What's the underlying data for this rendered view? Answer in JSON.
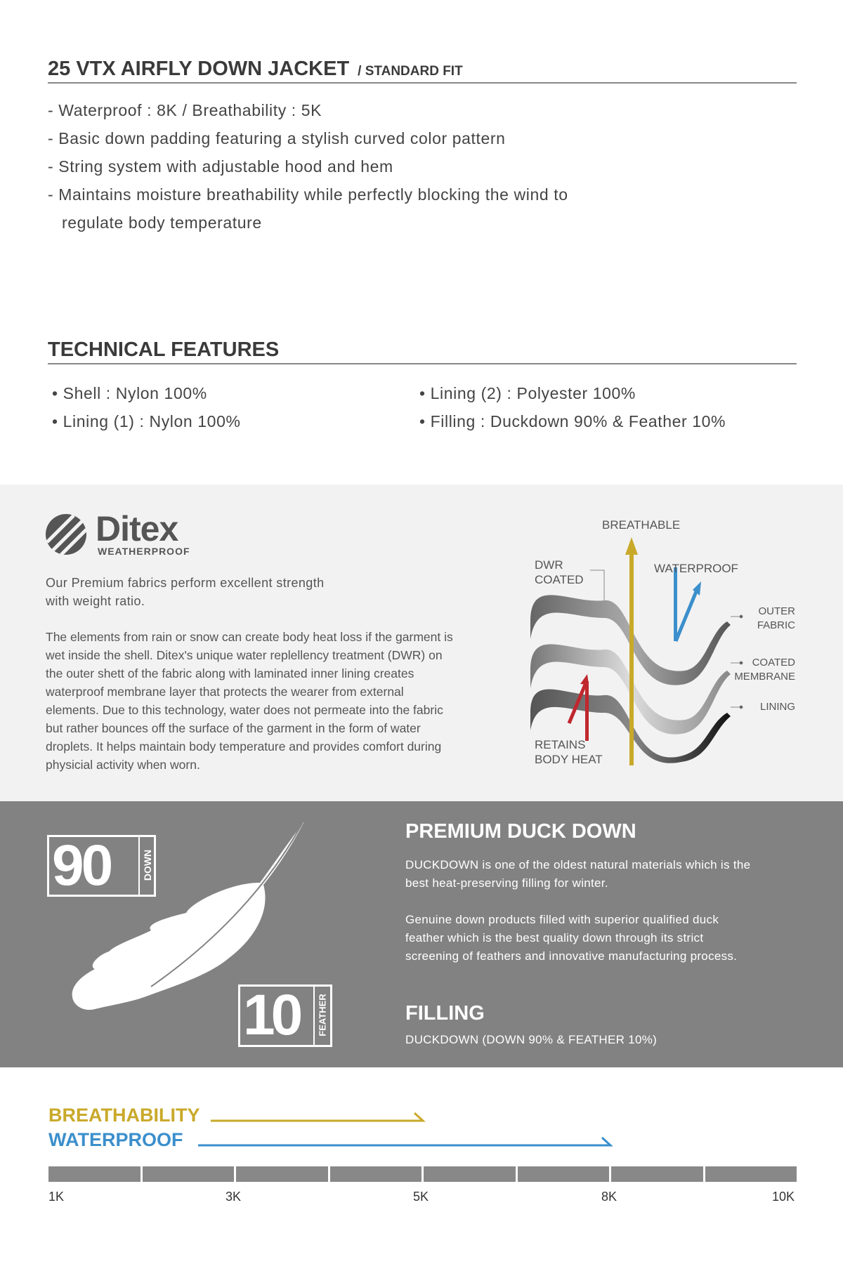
{
  "product": {
    "title": "25 VTX AIRFLY DOWN JACKET",
    "fit": "/ STANDARD FIT",
    "bullets": [
      "- Waterproof : 8K / Breathability : 5K",
      "- Basic down padding featuring a stylish curved color pattern",
      "- String system with adjustable hood and hem",
      "- Maintains moisture breathability while perfectly blocking the wind to",
      "regulate body temperature"
    ]
  },
  "tech": {
    "title": "TECHNICAL FEATURES",
    "items": [
      "• Shell : Nylon 100%",
      "• Lining (1) : Nylon 100%",
      "• Lining (2) : Polyester 100%",
      "• Filling : Duckdown 90% & Feather 10%"
    ]
  },
  "ditex": {
    "logo": "Ditex",
    "logo_sub": "WEATHERPROOF",
    "lead1": "Our Premium fabrics perform excellent strength",
    "lead2": "with weight ratio.",
    "body": [
      "The elements from rain or snow can create body heat loss if the garment is",
      "wet inside the shell. Ditex's unique water replellency treatment (DWR)  on",
      "the outer shett of the fabric along with laminated inner lining creates",
      "waterproof membrane layer that protects the wearer from external",
      "elements. Due to this technology, water does not permeate into the fabric",
      "but rather bounces off the surface of the garment in the form of water",
      "droplets. It helps maintain body temperature and provides comfort during",
      "physicial activity when worn."
    ],
    "diagram": {
      "breathable": "BREATHABLE",
      "waterproof": "WATERPROOF",
      "dwr1": "DWR",
      "dwr2": "COATED",
      "outer1": "OUTER",
      "outer2": "FABRIC",
      "coated1": "COATED",
      "coated2": "MEMBRANE",
      "lining": "LINING",
      "retains1": "RETAINS",
      "retains2": "BODY HEAT"
    },
    "colors": {
      "breathable": "#c9a92a",
      "waterproof": "#3b8fcc",
      "heat": "#c0272d"
    }
  },
  "down": {
    "badge_down_num": "90",
    "badge_down_label": "DOWN",
    "badge_feather_num": "10",
    "badge_feather_label": "FEATHER",
    "icon": "feather-icon",
    "title": "PREMIUM DUCK DOWN",
    "p1": [
      "DUCKDOWN is one of the oldest natural materials which is the",
      "best heat-preserving filling for winter."
    ],
    "p2": [
      "Genuine down products filled with superior qualified duck",
      "feather which is the best quality down through its strict",
      "screening of feathers and innovative manufacturing process."
    ],
    "filling_title": "FILLING",
    "filling": "DUCKDOWN (DOWN 90% & FEATHER 10%)"
  },
  "rating": {
    "breathability_label": "BREATHABILITY",
    "breathability_value": "5K",
    "waterproof_label": "WATERPROOF",
    "waterproof_value": "8K",
    "ticks": [
      "1K",
      "3K",
      "5K",
      "8K",
      "10K"
    ],
    "colors": {
      "breathability": "#c9a92a",
      "waterproof": "#3b8fcc",
      "scale": "#888888"
    }
  }
}
